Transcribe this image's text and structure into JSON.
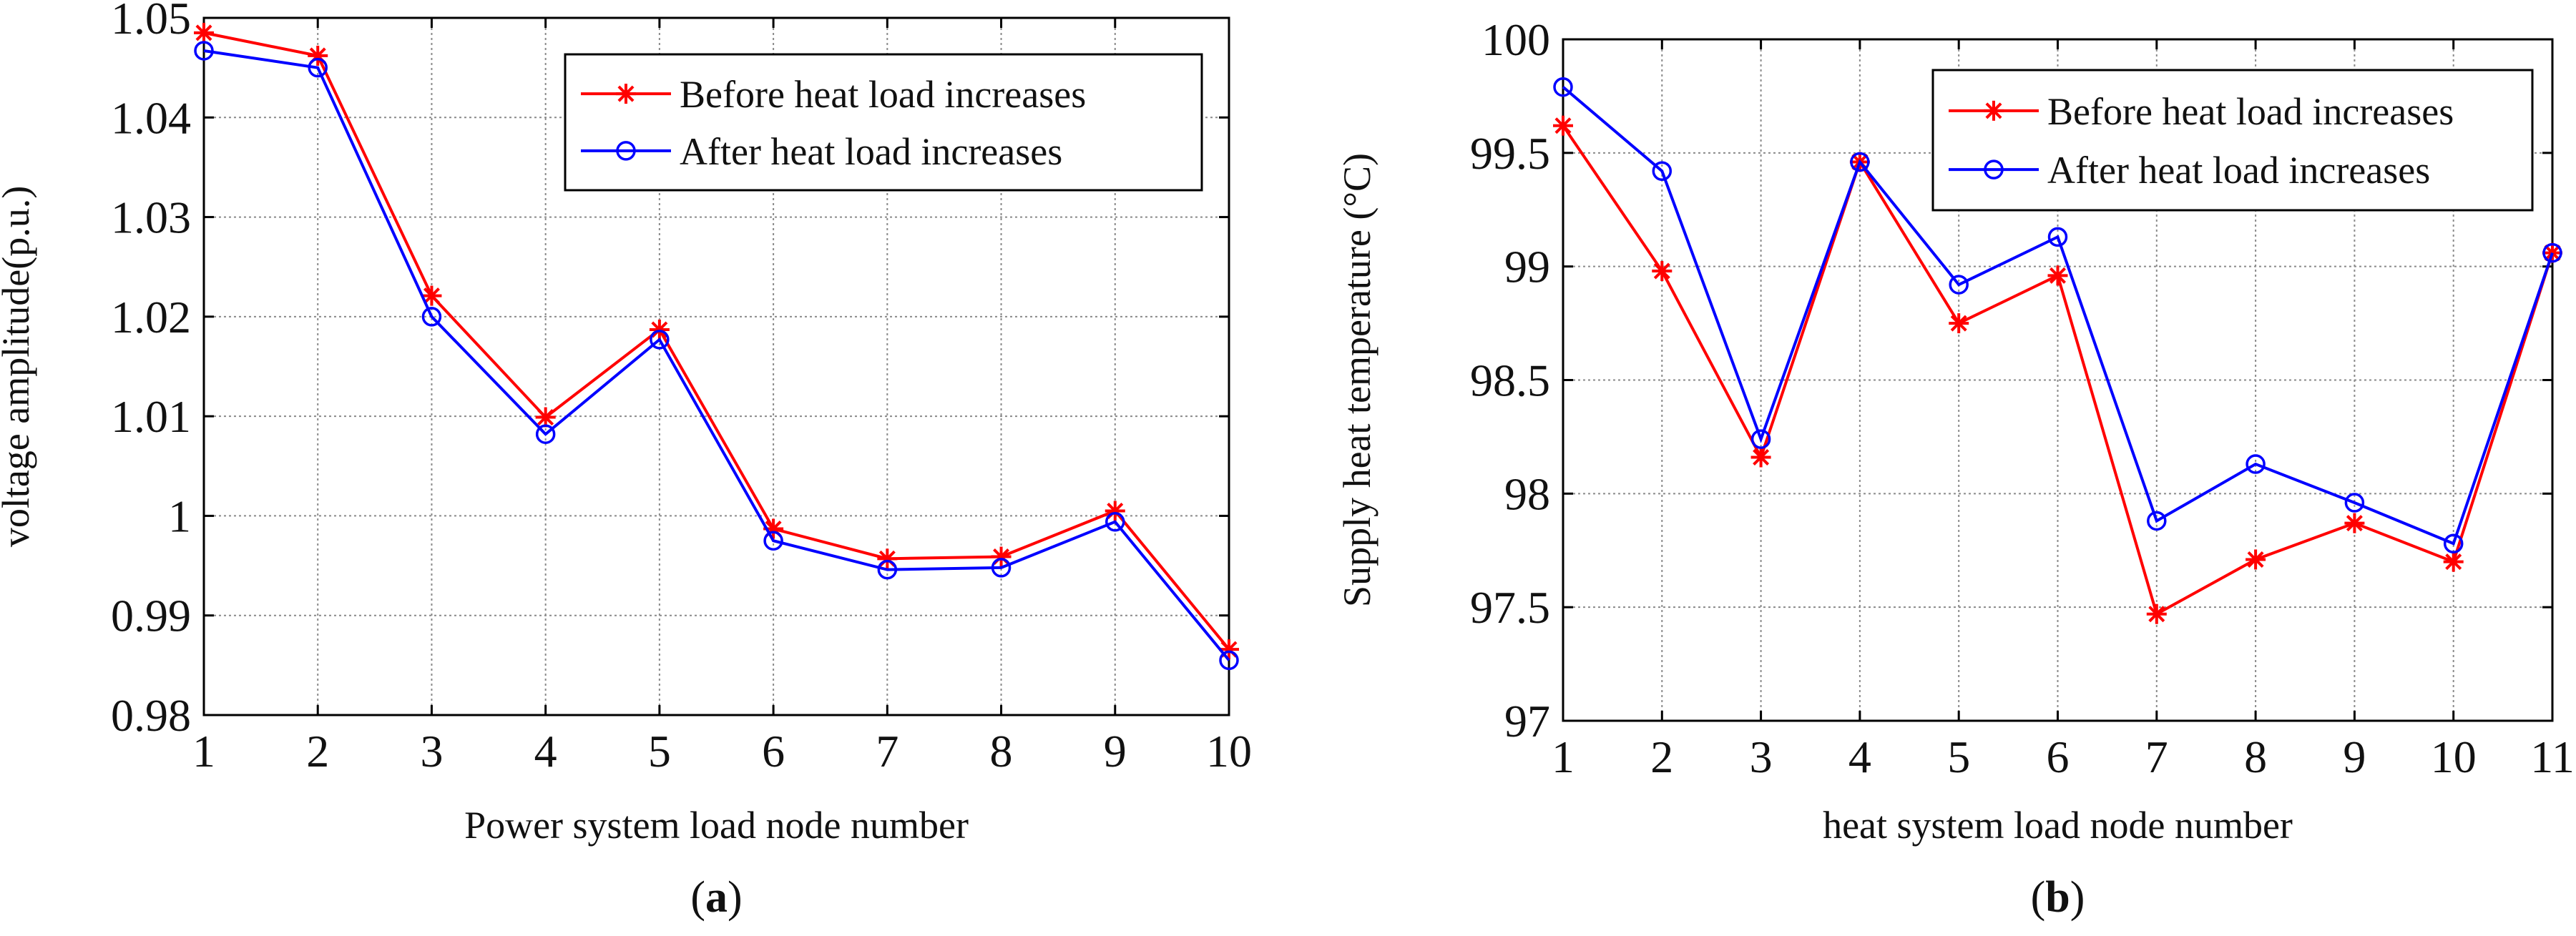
{
  "chart_data": [
    {
      "type": "line",
      "panel_label": "(a)",
      "panel_letter": "a",
      "xlabel": "Power system load node number",
      "ylabel": "voltage amplitude(p.u.)",
      "x": [
        1,
        2,
        3,
        4,
        5,
        6,
        7,
        8,
        9,
        10
      ],
      "xlim": [
        1,
        10
      ],
      "ylim": [
        0.98,
        1.05
      ],
      "xticks": [
        1,
        2,
        3,
        4,
        5,
        6,
        7,
        8,
        9,
        10
      ],
      "xtick_labels": [
        "1",
        "2",
        "3",
        "4",
        "5",
        "6",
        "7",
        "8",
        "9",
        "10"
      ],
      "yticks": [
        0.98,
        0.99,
        1.0,
        1.01,
        1.02,
        1.03,
        1.04,
        1.05
      ],
      "ytick_labels": [
        "0.98",
        "0.99",
        "1",
        "1.01",
        "1.02",
        "1.03",
        "1.04",
        "1.05"
      ],
      "grid": true,
      "legend_position": "top-right",
      "series": [
        {
          "name": "Before heat load increases",
          "color": "#ff0000",
          "marker": "asterisk",
          "values": [
            1.0485,
            1.0462,
            1.0221,
            1.0099,
            1.0187,
            0.9987,
            0.9957,
            0.9959,
            1.0005,
            0.9866
          ]
        },
        {
          "name": "After heat load increases",
          "color": "#0000ff",
          "marker": "circle",
          "values": [
            1.0467,
            1.045,
            1.02,
            1.0082,
            1.0177,
            0.9975,
            0.9946,
            0.9948,
            0.9994,
            0.9855
          ]
        }
      ]
    },
    {
      "type": "line",
      "panel_label": "(b)",
      "panel_letter": "b",
      "xlabel": "heat system load node number",
      "ylabel": "Supply heat temperature (°C)",
      "x": [
        1,
        2,
        3,
        4,
        5,
        6,
        7,
        8,
        9,
        10,
        11
      ],
      "xlim": [
        1,
        11
      ],
      "ylim": [
        97,
        100
      ],
      "xticks": [
        1,
        2,
        3,
        4,
        5,
        6,
        7,
        8,
        9,
        10,
        11
      ],
      "xtick_labels": [
        "1",
        "2",
        "3",
        "4",
        "5",
        "6",
        "7",
        "8",
        "9",
        "10",
        "11"
      ],
      "yticks": [
        97,
        97.5,
        98,
        98.5,
        99,
        99.5,
        100
      ],
      "ytick_labels": [
        "97",
        "97.5",
        "98",
        "98.5",
        "99",
        "99.5",
        "100"
      ],
      "grid": true,
      "legend_position": "top-right",
      "series": [
        {
          "name": "Before heat load increases",
          "color": "#ff0000",
          "marker": "asterisk",
          "values": [
            99.62,
            98.98,
            98.16,
            99.46,
            98.75,
            98.96,
            97.47,
            97.71,
            97.87,
            97.7,
            99.06
          ]
        },
        {
          "name": "After heat load increases",
          "color": "#0000ff",
          "marker": "circle",
          "values": [
            99.79,
            99.42,
            98.24,
            99.46,
            98.92,
            99.13,
            97.88,
            98.13,
            97.96,
            97.78,
            99.06
          ]
        }
      ]
    }
  ]
}
